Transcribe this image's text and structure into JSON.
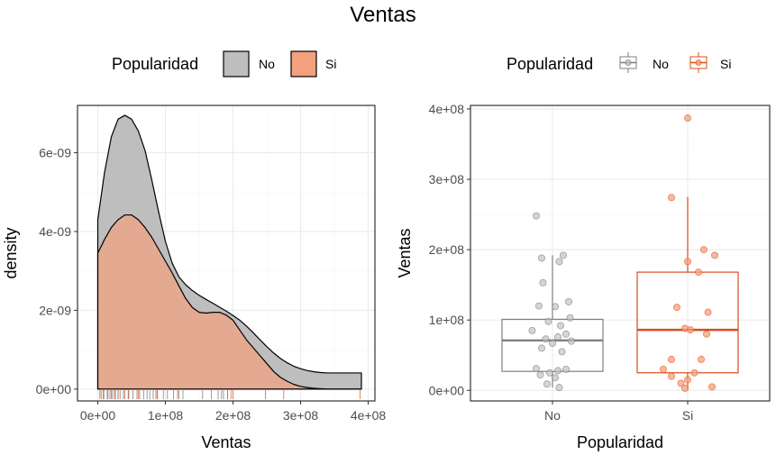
{
  "title": "Ventas",
  "colors": {
    "no_fill": "#bebebe",
    "si_fill": "#f4a07e",
    "si_dark": "#de5a2b",
    "no_box": "#7f7f7f",
    "si_box": "#d94c1c"
  },
  "chart_data": [
    {
      "type": "area",
      "subtype": "density",
      "legend": {
        "title": "Popularidad",
        "entries": [
          "No",
          "Si"
        ],
        "position": "top"
      },
      "xlabel": "Ventas",
      "ylabel": "density",
      "xlim": [
        -30000000,
        410000000
      ],
      "ylim": [
        -3e-10,
        7.2e-09
      ],
      "x_ticks": [
        0,
        100000000,
        200000000,
        300000000,
        400000000
      ],
      "x_tick_labels": [
        "0e+00",
        "1e+08",
        "2e+08",
        "3e+08",
        "4e+08"
      ],
      "y_ticks": [
        0,
        2e-09,
        4e-09,
        6e-09
      ],
      "y_tick_labels": [
        "0e+00",
        "2e-09",
        "4e-09",
        "6e-09"
      ],
      "series": [
        {
          "name": "No",
          "x": [
            0,
            10000000,
            20000000,
            30000000,
            40000000,
            50000000,
            60000000,
            70000000,
            80000000,
            90000000,
            100000000,
            110000000,
            120000000,
            130000000,
            140000000,
            150000000,
            160000000,
            170000000,
            180000000,
            190000000,
            200000000,
            210000000,
            220000000,
            230000000,
            240000000,
            250000000,
            260000000,
            270000000,
            280000000,
            290000000,
            300000000,
            310000000,
            320000000,
            330000000,
            340000000,
            350000000,
            360000000,
            370000000,
            380000000,
            390000000
          ],
          "y": [
            4.3e-09,
            5.5e-09,
            6.4e-09,
            6.85e-09,
            6.95e-09,
            6.85e-09,
            6.55e-09,
            6.05e-09,
            5.3e-09,
            4.5e-09,
            3.75e-09,
            3.2e-09,
            2.85e-09,
            2.65e-09,
            2.5e-09,
            2.38e-09,
            2.28e-09,
            2.18e-09,
            2.08e-09,
            1.98e-09,
            1.87e-09,
            1.75e-09,
            1.6e-09,
            1.43e-09,
            1.25e-09,
            1.08e-09,
            9.2e-10,
            7.8e-10,
            6.7e-10,
            5.8e-10,
            5.2e-10,
            4.7e-10,
            4.4e-10,
            4.2e-10,
            4.1e-10,
            4.1e-10,
            4.1e-10,
            4.1e-10,
            4.1e-10,
            4.1e-10
          ]
        },
        {
          "name": "Si",
          "x": [
            0,
            10000000,
            20000000,
            30000000,
            40000000,
            50000000,
            60000000,
            70000000,
            80000000,
            90000000,
            100000000,
            110000000,
            120000000,
            130000000,
            140000000,
            150000000,
            160000000,
            170000000,
            180000000,
            190000000,
            200000000,
            210000000,
            220000000,
            230000000,
            240000000,
            250000000,
            260000000,
            270000000,
            280000000,
            290000000,
            300000000,
            310000000,
            320000000,
            330000000,
            340000000,
            350000000,
            360000000,
            370000000,
            380000000,
            390000000
          ],
          "y": [
            3.45e-09,
            3.8e-09,
            4.1e-09,
            4.3e-09,
            4.42e-09,
            4.42e-09,
            4.3e-09,
            4.1e-09,
            3.85e-09,
            3.55e-09,
            3.25e-09,
            2.95e-09,
            2.62e-09,
            2.3e-09,
            2.07e-09,
            1.95e-09,
            1.93e-09,
            1.95e-09,
            1.95e-09,
            1.88e-09,
            1.75e-09,
            1.5e-09,
            1.25e-09,
            1.05e-09,
            8.5e-10,
            6.5e-10,
            4.5e-10,
            3e-10,
            2e-10,
            1.2e-10,
            7e-11,
            4e-11,
            2e-11,
            1e-11,
            0.0,
            0.0,
            0.0,
            0.0,
            0.0,
            0.0
          ]
        }
      ],
      "rug": {
        "No": [
          5000000,
          9000000,
          14000000,
          18000000,
          22000000,
          26000000,
          30000000,
          33000000,
          38000000,
          45000000,
          52000000,
          58000000,
          62000000,
          68000000,
          73000000,
          77000000,
          82000000,
          88000000,
          97000000,
          103000000,
          120000000,
          126000000,
          155000000,
          178000000,
          186000000,
          192000000,
          248000000
        ],
        "Si": [
          3000000,
          8000000,
          15000000,
          20000000,
          25000000,
          30000000,
          40000000,
          46000000,
          60000000,
          86000000,
          88000000,
          112000000,
          118000000,
          168000000,
          183000000,
          192000000,
          197000000,
          200000000,
          275000000,
          388000000
        ]
      }
    },
    {
      "type": "box",
      "legend": {
        "title": "Popularidad",
        "entries": [
          "No",
          "Si"
        ],
        "position": "top"
      },
      "xlabel": "Popularidad",
      "ylabel": "Ventas",
      "categories": [
        "No",
        "Si"
      ],
      "ylim": [
        -15000000,
        405000000
      ],
      "y_ticks": [
        0,
        100000000,
        200000000,
        300000000,
        400000000
      ],
      "y_tick_labels": [
        "0e+00",
        "1e+08",
        "2e+08",
        "3e+08",
        "4e+08"
      ],
      "boxes": [
        {
          "name": "No",
          "min": 4000000,
          "q1": 27000000,
          "median": 71000000,
          "q3": 101000000,
          "max": 192000000
        },
        {
          "name": "Si",
          "min": 0,
          "q1": 25000000,
          "median": 86000000,
          "q3": 168000000,
          "max": 275000000
        }
      ],
      "points": {
        "No": [
          [
            -0.12,
            248000000
          ],
          [
            -0.08,
            188000000
          ],
          [
            0.08,
            192000000
          ],
          [
            0.05,
            183000000
          ],
          [
            -0.07,
            153000000
          ],
          [
            -0.1,
            120000000
          ],
          [
            0.12,
            126000000
          ],
          [
            0.02,
            119000000
          ],
          [
            0.13,
            103000000
          ],
          [
            -0.03,
            98000000
          ],
          [
            0.06,
            92000000
          ],
          [
            -0.15,
            85000000
          ],
          [
            0.1,
            80000000
          ],
          [
            0.04,
            76000000
          ],
          [
            -0.05,
            73000000
          ],
          [
            0.14,
            70000000
          ],
          [
            0.0,
            67000000
          ],
          [
            -0.08,
            60000000
          ],
          [
            0.07,
            55000000
          ],
          [
            -0.12,
            31000000
          ],
          [
            0.1,
            30000000
          ],
          [
            0.04,
            28000000
          ],
          [
            -0.02,
            25000000
          ],
          [
            -0.09,
            22000000
          ],
          [
            0.02,
            18000000
          ],
          [
            -0.04,
            9000000
          ],
          [
            0.05,
            4000000
          ]
        ],
        "Si": [
          [
            -0.12,
            274000000
          ],
          [
            0.0,
            387000000
          ],
          [
            0.12,
            200000000
          ],
          [
            0.2,
            192000000
          ],
          [
            0.0,
            183000000
          ],
          [
            0.08,
            168000000
          ],
          [
            -0.08,
            118000000
          ],
          [
            0.15,
            111000000
          ],
          [
            -0.02,
            88000000
          ],
          [
            0.02,
            86000000
          ],
          [
            0.14,
            80000000
          ],
          [
            -0.12,
            44000000
          ],
          [
            0.1,
            44000000
          ],
          [
            -0.18,
            30000000
          ],
          [
            0.05,
            25000000
          ],
          [
            -0.12,
            20000000
          ],
          [
            0.0,
            15000000
          ],
          [
            -0.05,
            10000000
          ],
          [
            0.18,
            5000000
          ],
          [
            -0.02,
            3000000
          ]
        ]
      }
    }
  ]
}
